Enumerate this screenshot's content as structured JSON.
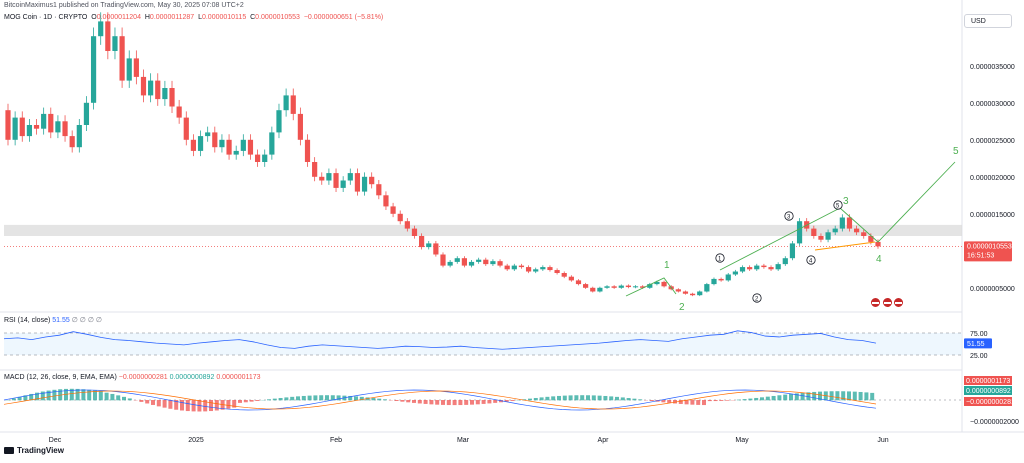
{
  "header": {
    "author_line": "BitcoinMaximus1 published on TradingView.com, May 30, 2025 07:08 UTC+2",
    "symbol": "MOG Coin · 1D · CRYPTO",
    "open_label": "O",
    "open": "0.0000011204",
    "high_label": "H",
    "high": "0.0000011287",
    "low_label": "L",
    "low": "0.0000010115",
    "close_label": "C",
    "close": "0.0000010553",
    "change": "−0.0000000651 (−5.81%)",
    "currency": "USD"
  },
  "price_axis": {
    "ticks": [
      "0.0000035000",
      "0.0000030000",
      "0.0000025000",
      "0.0000020000",
      "0.0000015000",
      "0.0000005000"
    ],
    "current_price": "0.0000010553",
    "countdown": "16:51:53"
  },
  "rsi": {
    "label": "RSI (14, close)",
    "value": "51.55",
    "flags": "∅ ∅ ∅ ∅",
    "ticks": [
      "75.00",
      "25.00"
    ]
  },
  "macd": {
    "label": "MACD (12, 26, close, 9, EMA, EMA)",
    "v1": "−0.0000000281",
    "v2": "0.0000000892",
    "v3": "0.0000001173",
    "badge_top": "0.0000001173",
    "badge_mid": "0.0000000892",
    "badge_bot": "−0.0000000281",
    "tick_bottom": "−0.0000002000"
  },
  "time_axis": [
    "Dec",
    "2025",
    "Feb",
    "Mar",
    "Apr",
    "May",
    "Jun"
  ],
  "watermark": "TradingView",
  "colors": {
    "up": "#26a69a",
    "down": "#ef5350",
    "rsi": "#2962ff",
    "wave": "#4caf50",
    "macd": "#2962ff",
    "signal": "#ff6d00"
  },
  "chart_data": {
    "type": "candlestick",
    "title": "MOG Coin · 1D · CRYPTO",
    "ylim": [
      2e-07,
      4.2e-06
    ],
    "x_range": [
      "2024-11-22",
      "2025-06-14"
    ],
    "candles_ohlc": [
      [
        2.9,
        2.5
      ],
      [
        2.5,
        2.8
      ],
      [
        2.8,
        2.55
      ],
      [
        2.55,
        2.7
      ],
      [
        2.7,
        2.65
      ],
      [
        2.65,
        2.85
      ],
      [
        2.85,
        2.6
      ],
      [
        2.6,
        2.75
      ],
      [
        2.75,
        2.55
      ],
      [
        2.55,
        2.4
      ],
      [
        2.4,
        2.7
      ],
      [
        2.7,
        3.0
      ],
      [
        3.0,
        3.9
      ],
      [
        3.9,
        4.1
      ],
      [
        4.1,
        3.7
      ],
      [
        3.7,
        3.9
      ],
      [
        3.9,
        3.3
      ],
      [
        3.3,
        3.6
      ],
      [
        3.6,
        3.35
      ],
      [
        3.35,
        3.1
      ],
      [
        3.1,
        3.3
      ],
      [
        3.3,
        3.05
      ],
      [
        3.05,
        3.2
      ],
      [
        3.2,
        2.95
      ],
      [
        2.95,
        2.8
      ],
      [
        2.8,
        2.5
      ],
      [
        2.5,
        2.35
      ],
      [
        2.35,
        2.55
      ],
      [
        2.55,
        2.6
      ],
      [
        2.6,
        2.4
      ],
      [
        2.4,
        2.5
      ],
      [
        2.5,
        2.3
      ],
      [
        2.3,
        2.35
      ],
      [
        2.35,
        2.5
      ],
      [
        2.5,
        2.3
      ],
      [
        2.3,
        2.2
      ],
      [
        2.2,
        2.3
      ],
      [
        2.3,
        2.6
      ],
      [
        2.6,
        2.9
      ],
      [
        2.9,
        3.1
      ],
      [
        3.1,
        2.85
      ],
      [
        2.85,
        2.5
      ],
      [
        2.5,
        2.2
      ],
      [
        2.2,
        2.0
      ],
      [
        2.0,
        1.95
      ],
      [
        1.95,
        2.05
      ],
      [
        2.05,
        1.85
      ],
      [
        1.85,
        1.95
      ],
      [
        1.95,
        2.05
      ],
      [
        2.05,
        1.8
      ],
      [
        1.8,
        2.0
      ],
      [
        2.0,
        1.9
      ],
      [
        1.9,
        1.75
      ],
      [
        1.75,
        1.6
      ],
      [
        1.6,
        1.5
      ],
      [
        1.5,
        1.4
      ],
      [
        1.4,
        1.3
      ],
      [
        1.3,
        1.2
      ],
      [
        1.2,
        1.05
      ],
      [
        1.05,
        1.1
      ],
      [
        1.1,
        0.95
      ],
      [
        0.95,
        0.8
      ],
      [
        0.8,
        0.85
      ],
      [
        0.85,
        0.9
      ],
      [
        0.9,
        0.8
      ],
      [
        0.8,
        0.85
      ],
      [
        0.85,
        0.88
      ],
      [
        0.88,
        0.82
      ],
      [
        0.82,
        0.86
      ],
      [
        0.86,
        0.8
      ],
      [
        0.8,
        0.75
      ],
      [
        0.75,
        0.8
      ],
      [
        0.8,
        0.78
      ],
      [
        0.78,
        0.72
      ],
      [
        0.72,
        0.75
      ],
      [
        0.75,
        0.78
      ],
      [
        0.78,
        0.74
      ],
      [
        0.74,
        0.7
      ],
      [
        0.7,
        0.65
      ],
      [
        0.65,
        0.6
      ],
      [
        0.6,
        0.55
      ],
      [
        0.55,
        0.5
      ],
      [
        0.5,
        0.45
      ],
      [
        0.45,
        0.5
      ],
      [
        0.5,
        0.52
      ],
      [
        0.52,
        0.5
      ],
      [
        0.5,
        0.53
      ],
      [
        0.53,
        0.51
      ],
      [
        0.51,
        0.52
      ],
      [
        0.52,
        0.5
      ],
      [
        0.5,
        0.55
      ],
      [
        0.55,
        0.58
      ],
      [
        0.58,
        0.52
      ],
      [
        0.52,
        0.48
      ],
      [
        0.48,
        0.45
      ],
      [
        0.45,
        0.42
      ],
      [
        0.42,
        0.4
      ],
      [
        0.4,
        0.45
      ],
      [
        0.45,
        0.55
      ],
      [
        0.55,
        0.62
      ],
      [
        0.62,
        0.6
      ],
      [
        0.6,
        0.68
      ],
      [
        0.68,
        0.72
      ],
      [
        0.72,
        0.78
      ],
      [
        0.78,
        0.75
      ],
      [
        0.75,
        0.8
      ],
      [
        0.8,
        0.78
      ],
      [
        0.78,
        0.75
      ],
      [
        0.75,
        0.82
      ],
      [
        0.82,
        0.9
      ],
      [
        0.9,
        1.1
      ],
      [
        1.1,
        1.4
      ],
      [
        1.4,
        1.3
      ],
      [
        1.3,
        1.2
      ],
      [
        1.2,
        1.15
      ],
      [
        1.15,
        1.25
      ],
      [
        1.25,
        1.3
      ],
      [
        1.3,
        1.45
      ],
      [
        1.45,
        1.3
      ],
      [
        1.3,
        1.25
      ],
      [
        1.25,
        1.2
      ],
      [
        1.2,
        1.12
      ],
      [
        1.12,
        1.06
      ]
    ],
    "rsi_values": [
      62,
      64,
      60,
      66,
      70,
      78,
      72,
      65,
      60,
      58,
      55,
      52,
      50,
      48,
      52,
      55,
      58,
      60,
      55,
      48,
      42,
      40,
      45,
      48,
      46,
      44,
      42,
      40,
      42,
      45,
      44,
      42,
      43,
      45,
      42,
      40,
      38,
      40,
      42,
      44,
      46,
      48,
      50,
      52,
      55,
      58,
      60,
      58,
      56,
      62,
      66,
      70,
      72,
      80,
      76,
      68,
      66,
      70,
      72,
      74,
      66,
      60,
      58,
      52
    ],
    "annotations": [
      "1",
      "2",
      "3",
      "4",
      "5",
      "①",
      "②",
      "③",
      "④",
      "⑤"
    ]
  }
}
